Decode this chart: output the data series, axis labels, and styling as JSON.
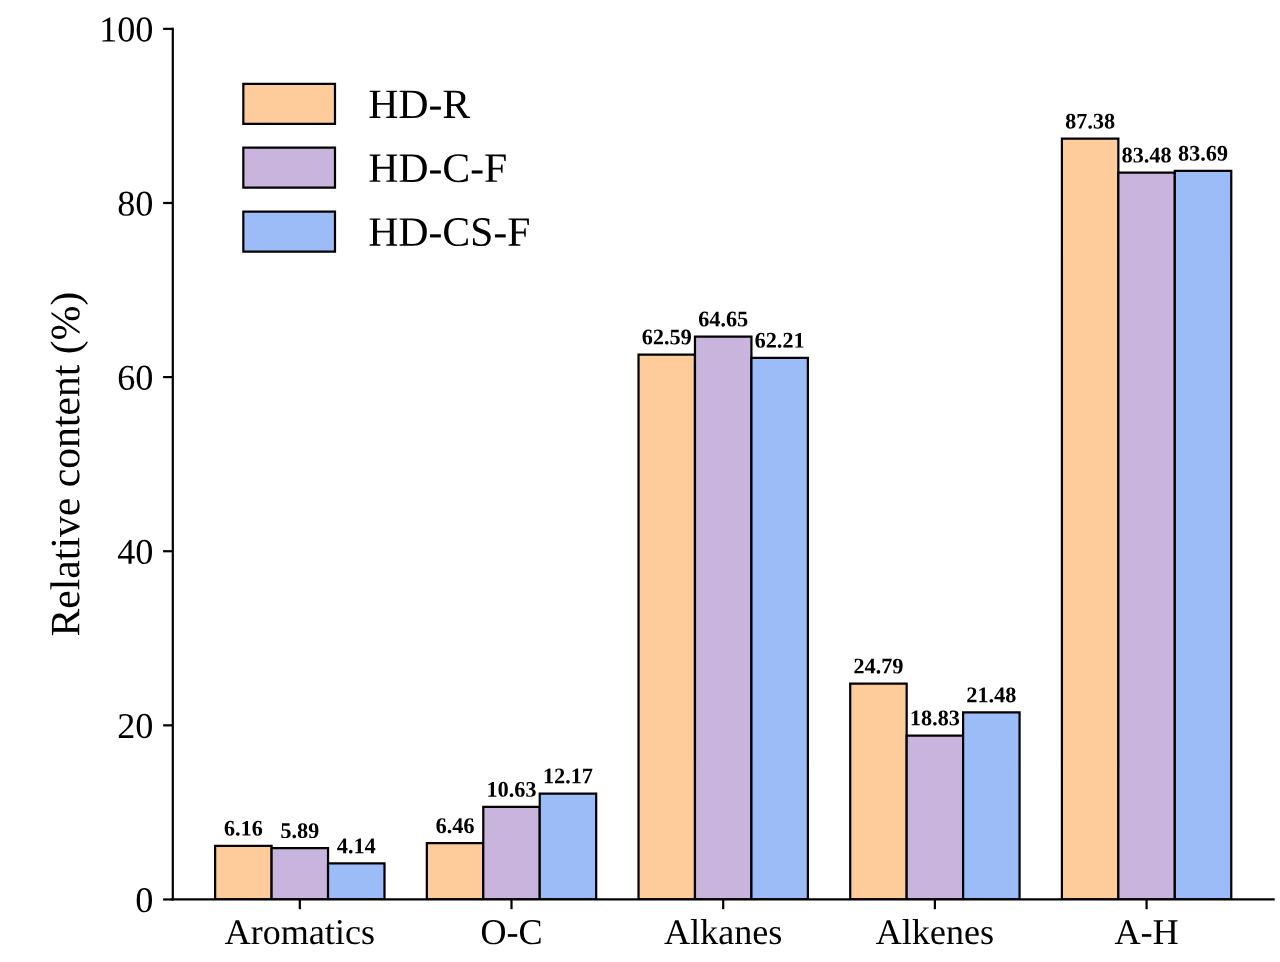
{
  "chart_data": {
    "type": "bar",
    "ylabel": "Relative content (%)",
    "categories": [
      "Aromatics",
      "O-C",
      "Alkanes",
      "Alkenes",
      "A-H"
    ],
    "series": [
      {
        "name": "HD-R",
        "color": "#fdcc9a",
        "values": [
          6.16,
          6.46,
          62.59,
          24.79,
          87.38
        ]
      },
      {
        "name": "HD-C-F",
        "color": "#c8b4dc",
        "values": [
          5.89,
          10.63,
          64.65,
          18.83,
          83.48
        ]
      },
      {
        "name": "HD-CS-F",
        "color": "#9cbcf8",
        "values": [
          4.14,
          12.17,
          62.21,
          21.48,
          83.69
        ]
      }
    ],
    "ylim": [
      0,
      100
    ],
    "yticks": [
      0,
      20,
      40,
      60,
      80,
      100
    ],
    "data_labels": true,
    "legend": "top left",
    "grid": false
  }
}
